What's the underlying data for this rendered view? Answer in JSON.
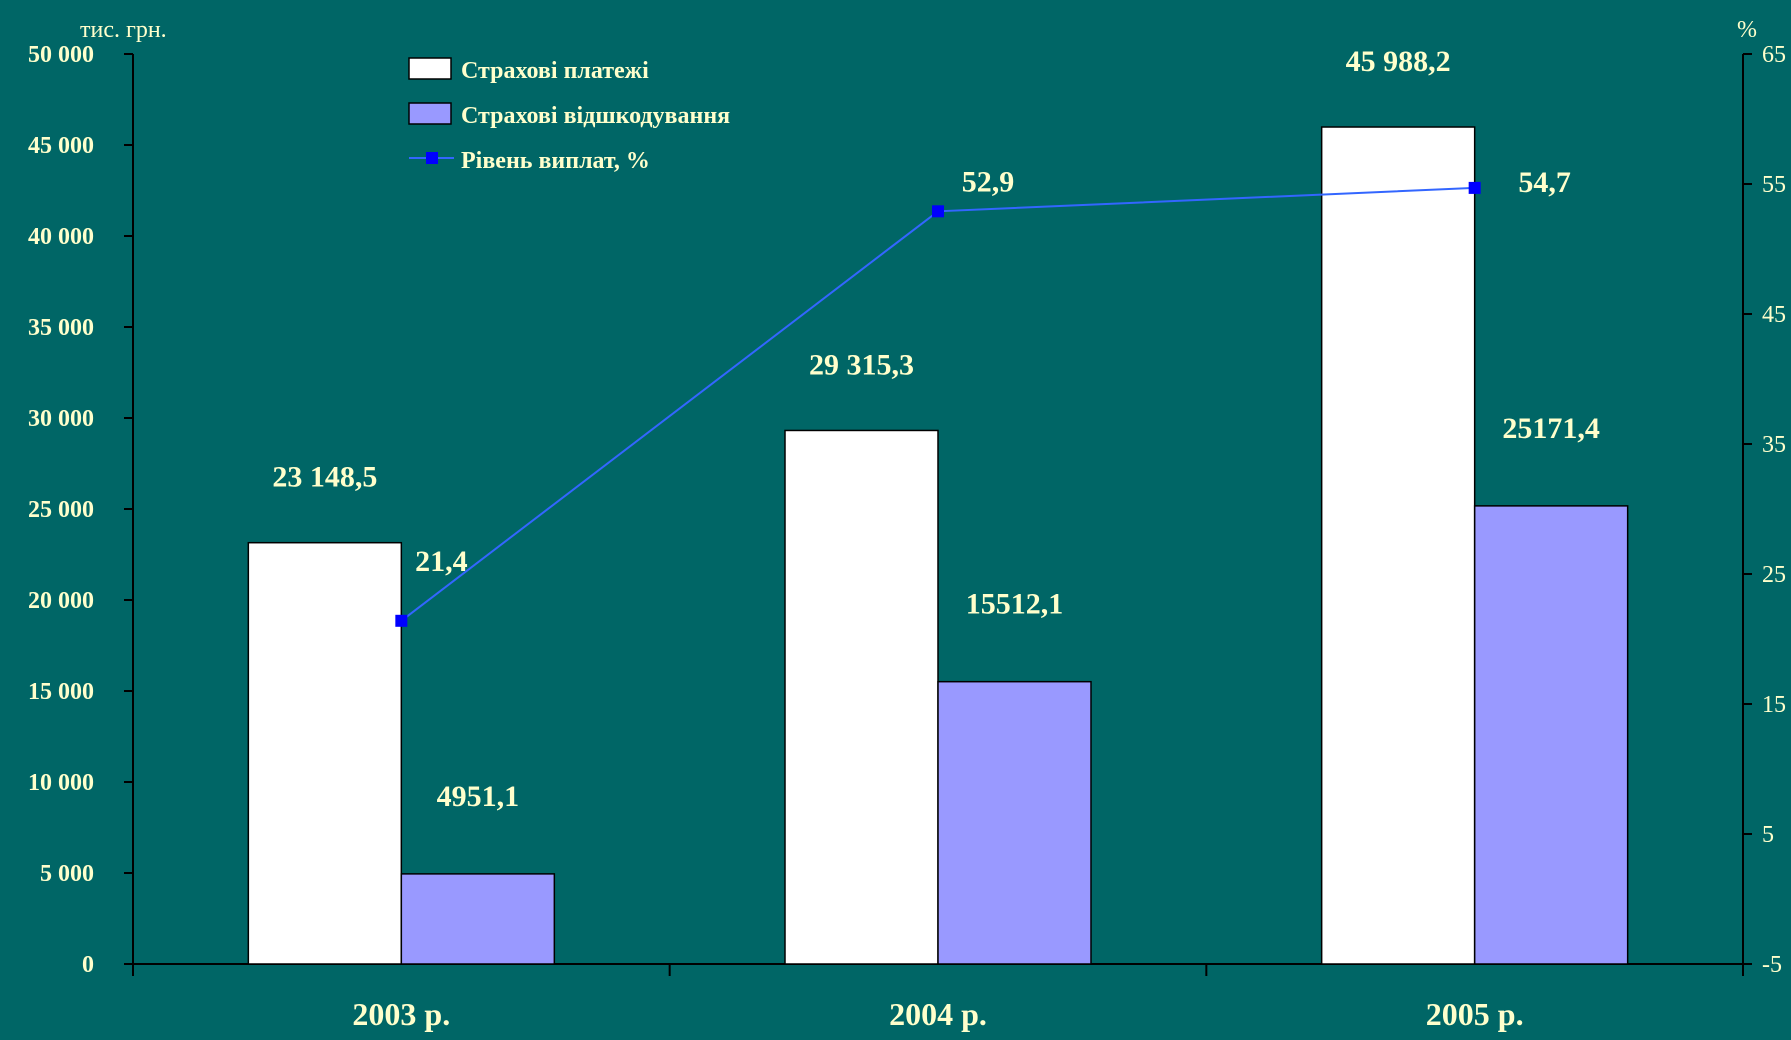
{
  "chart_data": {
    "type": "bar",
    "title": "",
    "left_unit": "тис. грн.",
    "right_unit": "%",
    "categories": [
      "2003 р.",
      "2004 р.",
      "2005 р."
    ],
    "series": [
      {
        "name": "Страхові платежі",
        "type": "bar",
        "axis": "left",
        "color": "#FFFFFF",
        "values": [
          23148.5,
          29315.3,
          45988.2
        ],
        "labels": [
          "23 148,5",
          "29 315,3",
          "45 988,2"
        ]
      },
      {
        "name": "Страхові відшкодування",
        "type": "bar",
        "axis": "left",
        "color": "#9999FF",
        "values": [
          4951.1,
          15512.1,
          25171.4
        ],
        "labels": [
          "4951,1",
          "15512,1",
          "25171,4"
        ]
      },
      {
        "name": "Рівень виплат, %",
        "type": "line",
        "axis": "right",
        "color": "#3366FF",
        "marker_color": "#0000FF",
        "values": [
          21.4,
          52.9,
          54.7
        ],
        "labels": [
          "21,4",
          "52,9",
          "54,7"
        ]
      }
    ],
    "left_axis": {
      "min": 0,
      "max": 50000,
      "ticks": [
        0,
        5000,
        10000,
        15000,
        20000,
        25000,
        30000,
        35000,
        40000,
        45000,
        50000
      ],
      "tick_labels": [
        "0",
        "5 000",
        "10 000",
        "15 000",
        "20 000",
        "25 000",
        "30 000",
        "35 000",
        "40 000",
        "45 000",
        "50 000"
      ]
    },
    "right_axis": {
      "min": -5,
      "max": 65,
      "ticks": [
        -5,
        5,
        15,
        25,
        35,
        45,
        55,
        65
      ],
      "tick_labels": [
        "-5",
        "5",
        "15",
        "25",
        "35",
        "45",
        "55",
        "65"
      ]
    },
    "legend_placement": "top-left",
    "grid": false,
    "background_color": "#006666",
    "text_color": "#FFFFCC"
  }
}
